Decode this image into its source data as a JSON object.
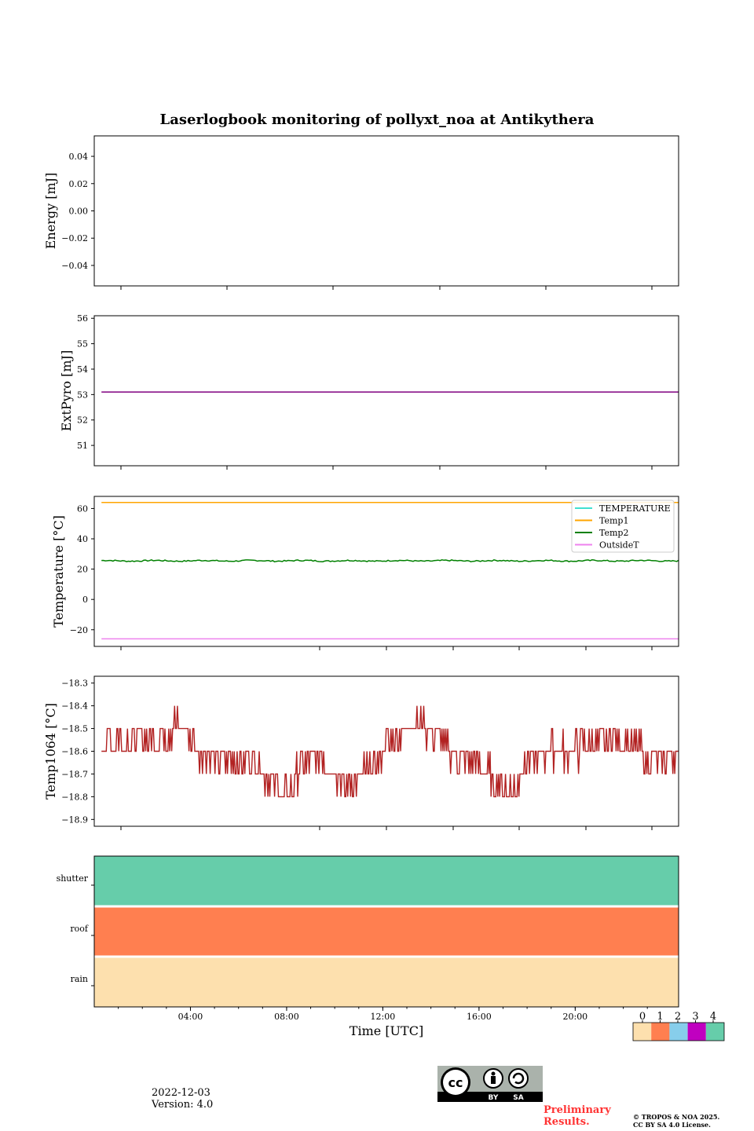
{
  "figure": {
    "title": "Laserlogbook monitoring of pollyxt_noa at Antikythera",
    "xlabel": "Time [UTC]",
    "date": "2022-12-03",
    "version": "Version: 4.0",
    "preliminary": [
      "Preliminary",
      "Results."
    ],
    "copyright": [
      "© TROPOS & NOA 2025.",
      "CC BY SA 4.0 License."
    ],
    "license_badge": {
      "by": "BY",
      "sa": "SA"
    }
  },
  "chart_data": [
    {
      "id": "energy",
      "type": "line",
      "ylabel": "Energy [mJ]",
      "ylim": [
        -0.055,
        0.055
      ],
      "yticks": [
        -0.04,
        -0.02,
        0.0,
        0.02,
        0.04
      ],
      "ytick_labels": [
        "−0.04",
        "−0.02",
        "0.00",
        "0.02",
        "0.04"
      ],
      "series": []
    },
    {
      "id": "extpyro",
      "type": "line",
      "ylabel": "ExtPyro [mJ]",
      "ylim": [
        50.2,
        56.1
      ],
      "yticks": [
        51,
        52,
        53,
        54,
        55,
        56
      ],
      "ytick_labels": [
        "51",
        "52",
        "53",
        "54",
        "55",
        "56"
      ],
      "series": [
        {
          "color": "#800080",
          "x": [
            0.3,
            24.3
          ],
          "values": [
            53.1,
            53.1
          ]
        }
      ]
    },
    {
      "id": "temperature",
      "type": "line",
      "ylabel": "Temperature [°C]",
      "ylim": [
        -31,
        68
      ],
      "yticks": [
        -20,
        0,
        20,
        40,
        60
      ],
      "ytick_labels": [
        "−20",
        "0",
        "20",
        "40",
        "60"
      ],
      "legend": {
        "placement": "top-right"
      },
      "series": [
        {
          "name": "TEMPERATURE",
          "color": "#40e0d0",
          "x": [],
          "values": []
        },
        {
          "name": "Temp1",
          "color": "#ffa500",
          "x": [
            0.3,
            24.3
          ],
          "values": [
            64,
            64
          ]
        },
        {
          "name": "Temp2",
          "color": "#008000",
          "mean": 25.5,
          "noise": 0.6
        },
        {
          "name": "OutsideT",
          "color": "#ee82ee",
          "x": [
            0.3,
            24.3
          ],
          "values": [
            -26,
            -26
          ]
        }
      ]
    },
    {
      "id": "temp1064",
      "type": "line",
      "ylabel": "Temp1064 [°C]",
      "ylim": [
        -18.93,
        -18.27
      ],
      "yticks": [
        -18.9,
        -18.8,
        -18.7,
        -18.6,
        -18.5,
        -18.4,
        -18.3
      ],
      "ytick_labels": [
        "−18.9",
        "−18.8",
        "−18.7",
        "−18.6",
        "−18.5",
        "−18.4",
        "−18.3"
      ],
      "series": [
        {
          "color": "#b22222",
          "step": 0.1,
          "x": [
            0.3,
            1.5,
            2.5,
            3.5,
            4.5,
            5.5,
            6.5,
            7.5,
            8.0,
            8.5,
            9.5,
            10.5,
            11.5,
            12.5,
            13.2,
            14.0,
            15.0,
            16.0,
            17.0,
            17.5,
            18.0,
            19.0,
            20.0,
            21.0,
            22.0,
            23.0,
            24.3
          ],
          "values": [
            -18.55,
            -18.55,
            -18.55,
            -18.48,
            -18.62,
            -18.64,
            -18.63,
            -18.76,
            -18.8,
            -18.68,
            -18.62,
            -18.76,
            -18.68,
            -18.53,
            -18.48,
            -18.5,
            -18.62,
            -18.66,
            -18.76,
            -18.76,
            -18.63,
            -18.6,
            -18.6,
            -18.56,
            -18.56,
            -18.62,
            -18.62
          ]
        }
      ]
    },
    {
      "id": "status",
      "type": "heatmap",
      "categories": [
        "rain",
        "roof",
        "shutter"
      ],
      "values": [
        0,
        1,
        4
      ],
      "xticks": [
        "04:00",
        "08:00",
        "12:00",
        "16:00",
        "20:00"
      ],
      "xtick_hours": [
        4,
        8,
        12,
        16,
        20
      ],
      "xlim_hours": [
        0,
        24.3
      ]
    }
  ],
  "colorbar": {
    "ticks": [
      "0",
      "1",
      "2",
      "3",
      "4"
    ],
    "colors": [
      "#fde0ae",
      "#ff7f50",
      "#87ceeb",
      "#c000c0",
      "#66cdaa"
    ]
  }
}
